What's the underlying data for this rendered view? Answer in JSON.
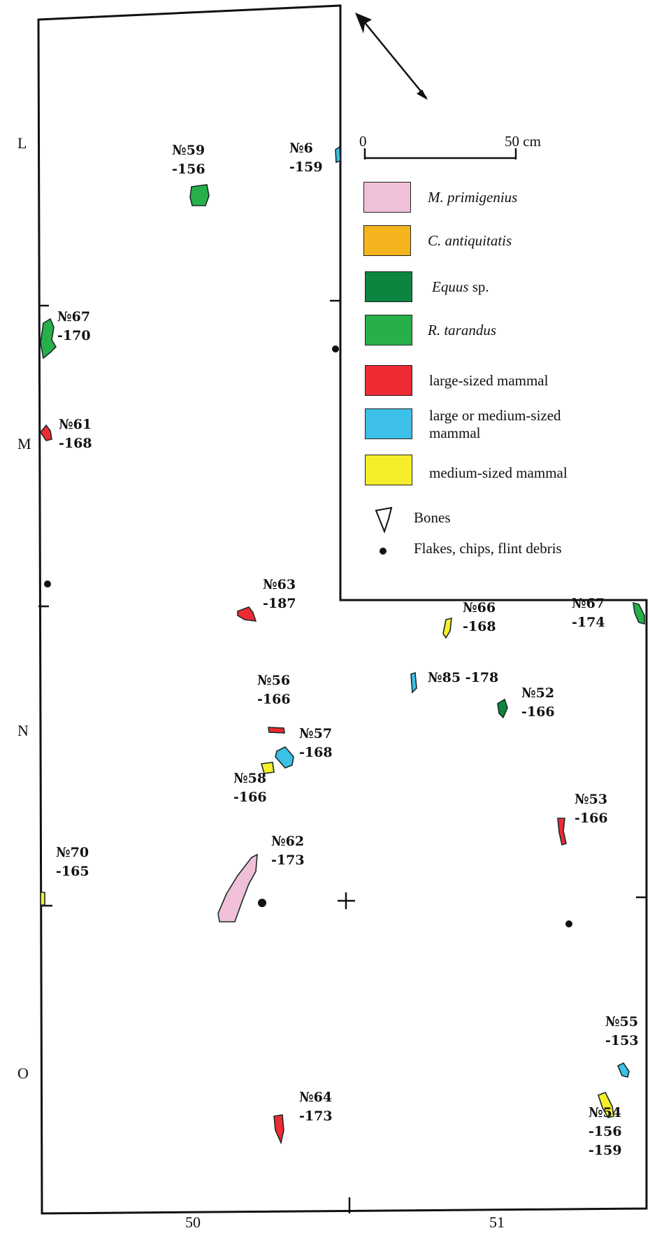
{
  "rows": [
    "L",
    "M",
    "N",
    "O"
  ],
  "columns": [
    "50",
    "51"
  ],
  "scale": {
    "start": "0",
    "end": "50 cm"
  },
  "legend": [
    {
      "id": "mammoth",
      "label": "M. primigenius",
      "italic": true,
      "color": "#efc0d8"
    },
    {
      "id": "rhino",
      "label": "C. antiquitatis",
      "italic": true,
      "color": "#f4b41e"
    },
    {
      "id": "horse",
      "label": "Equus",
      "label_suffix": " sp.",
      "italic": true,
      "color": "#0c8540"
    },
    {
      "id": "reindeer",
      "label": "R. tarandus",
      "italic": true,
      "color": "#27b04a"
    },
    {
      "id": "large",
      "label": "large-sized mammal",
      "italic": false,
      "color": "#ee2a33"
    },
    {
      "id": "large_medium",
      "label": "large or medium-sized mammal",
      "italic": false,
      "color": "#3cc0e8"
    },
    {
      "id": "medium",
      "label": "medium-sized mammal",
      "italic": false,
      "color": "#f5ee2a"
    }
  ],
  "symbols": {
    "bones": "Bones",
    "flakes": "Flakes, chips, flint debris"
  },
  "finds": [
    {
      "no": "№59",
      "depth": "-156",
      "taxon": "reindeer"
    },
    {
      "no": "№6",
      "depth": "-159",
      "taxon": "large_medium"
    },
    {
      "no": "№67",
      "depth": "-170",
      "taxon": "reindeer"
    },
    {
      "no": "№61",
      "depth": "-168",
      "taxon": "large"
    },
    {
      "no": "№63",
      "depth": "-187",
      "taxon": "large"
    },
    {
      "no": "№66",
      "depth": "-168",
      "taxon": "medium"
    },
    {
      "no": "№67",
      "depth": "-174",
      "taxon": "reindeer"
    },
    {
      "no": "№85",
      "depth": "-178",
      "taxon": "large_medium"
    },
    {
      "no": "№52",
      "depth": "-166",
      "taxon": "horse"
    },
    {
      "no": "№56",
      "depth": "-166",
      "taxon": "large"
    },
    {
      "no": "№57",
      "depth": "-168",
      "taxon": "large_medium"
    },
    {
      "no": "№58",
      "depth": "-166",
      "taxon": "medium"
    },
    {
      "no": "№53",
      "depth": "-166",
      "taxon": "large"
    },
    {
      "no": "№62",
      "depth": "-173",
      "taxon": "mammoth"
    },
    {
      "no": "№70",
      "depth": "-165",
      "taxon": "medium"
    },
    {
      "no": "№55",
      "depth": "-153",
      "taxon": "large_medium"
    },
    {
      "no": "№64",
      "depth": "-173",
      "taxon": "large"
    },
    {
      "no": "№54",
      "depth": "-156",
      "depth2": "-159",
      "taxon": "medium"
    }
  ]
}
